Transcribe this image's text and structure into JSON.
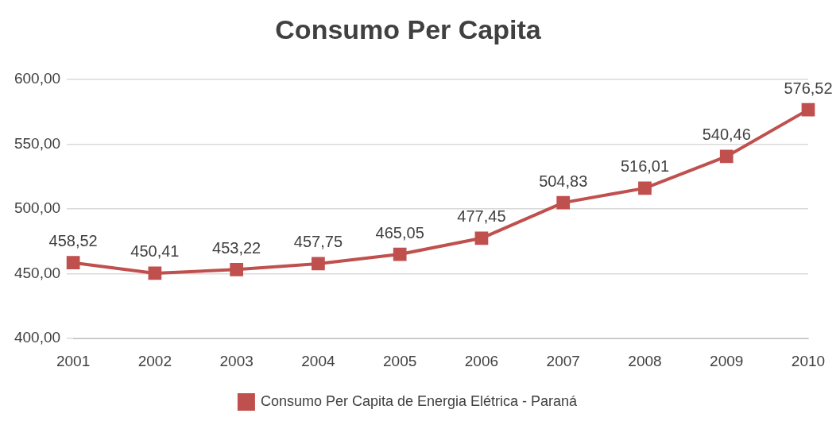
{
  "chart_data": {
    "type": "line",
    "title": "Consumo Per Capita",
    "categories": [
      "2001",
      "2002",
      "2003",
      "2004",
      "2005",
      "2006",
      "2007",
      "2008",
      "2009",
      "2010"
    ],
    "series": [
      {
        "name": "Consumo Per Capita de Energia Elétrica - Paraná",
        "color": "#c0504d",
        "values": [
          458.52,
          450.41,
          453.22,
          457.75,
          465.05,
          477.45,
          504.83,
          516.01,
          540.46,
          576.52
        ],
        "value_labels": [
          "458,52",
          "450,41",
          "453,22",
          "457,75",
          "465,05",
          "477,45",
          "504,83",
          "516,01",
          "540,46",
          "576,52"
        ]
      }
    ],
    "ylim": [
      400,
      600
    ],
    "yticks": [
      {
        "value": 400,
        "label": "400,00"
      },
      {
        "value": 450,
        "label": "450,00"
      },
      {
        "value": 500,
        "label": "500,00"
      },
      {
        "value": 550,
        "label": "550,00"
      },
      {
        "value": 600,
        "label": "600,00"
      }
    ],
    "grid": "y",
    "legend": "bottom",
    "marker": "square",
    "line_style": "solid"
  }
}
